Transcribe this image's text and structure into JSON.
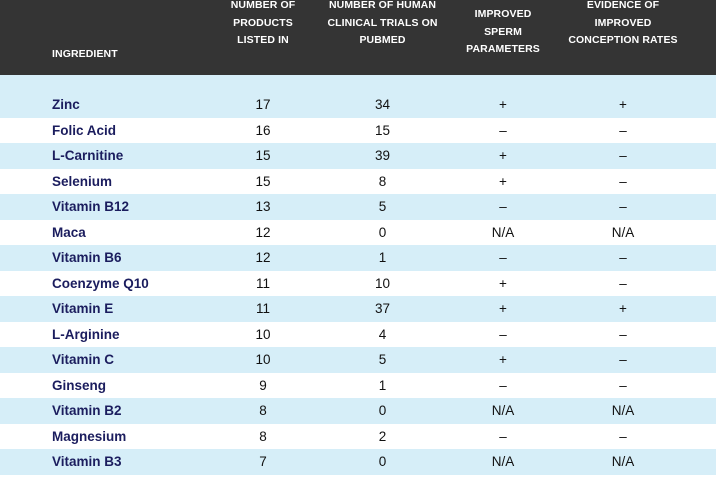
{
  "chart_data": {
    "type": "table",
    "columns": [
      "INGREDIENT",
      "NUMBER OF\nPRODUCTS\nLISTED IN",
      "NUMBER OF HUMAN\nCLINICAL TRIALS ON\nPUBMED",
      "EVIDENCE OF\nIMPROVED SPERM\nPARAMETERS",
      "EVIDENCE OF\nIMPROVED\nCONCEPTION RATES"
    ],
    "rows": [
      [
        "Zinc",
        "17",
        "34",
        "+",
        "+"
      ],
      [
        "Folic Acid",
        "16",
        "15",
        "–",
        "–"
      ],
      [
        "L-Carnitine",
        "15",
        "39",
        "+",
        "–"
      ],
      [
        "Selenium",
        "15",
        "8",
        "+",
        "–"
      ],
      [
        "Vitamin B12",
        "13",
        "5",
        "–",
        "–"
      ],
      [
        "Maca",
        "12",
        "0",
        "N/A",
        "N/A"
      ],
      [
        "Vitamin B6",
        "12",
        "1",
        "–",
        "–"
      ],
      [
        "Coenzyme Q10",
        "11",
        "10",
        "+",
        "–"
      ],
      [
        "Vitamin E",
        "11",
        "37",
        "+",
        "+"
      ],
      [
        "L-Arginine",
        "10",
        "4",
        "–",
        "–"
      ],
      [
        "Vitamin C",
        "10",
        "5",
        "+",
        "–"
      ],
      [
        "Ginseng",
        "9",
        "1",
        "–",
        "–"
      ],
      [
        "Vitamin B2",
        "8",
        "0",
        "N/A",
        "N/A"
      ],
      [
        "Magnesium",
        "8",
        "2",
        "–",
        "–"
      ],
      [
        "Vitamin B3",
        "7",
        "0",
        "N/A",
        "N/A"
      ]
    ]
  },
  "colors": {
    "header_bg": "#343434",
    "header_text": "#ffffff",
    "stripe": "#d6eef8",
    "ingredient_text": "#1b1d5e"
  }
}
